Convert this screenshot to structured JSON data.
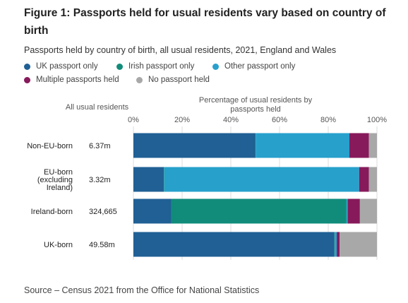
{
  "figure": {
    "title": "Figure 1: Passports held for usual residents vary based on country of birth",
    "subtitle": "Passports held by country of birth, all usual residents, 2021, England and Wales",
    "source": "Source – Census 2021 from the Office for National Statistics",
    "totals_header": "All usual residents",
    "percent_header": "Percentage of usual residents by passports held"
  },
  "colors": {
    "UK passport only": "#206095",
    "Irish passport only": "#118c7b",
    "Other passport only": "#27a0cc",
    "Multiple passports held": "#871a5b",
    "No passport held": "#a8a8a8"
  },
  "chart_data": {
    "type": "bar",
    "orientation": "horizontal",
    "stacked": true,
    "title": "Figure 1: Passports held for usual residents vary based on country of birth",
    "subtitle": "Passports held by country of birth, all usual residents, 2021, England and Wales",
    "xlabel": "Percentage of usual residents by passports held",
    "xlim": [
      0,
      100
    ],
    "xticks": [
      "0%",
      "20%",
      "40%",
      "60%",
      "80%",
      "100%"
    ],
    "legend_position": "top",
    "categories": [
      {
        "label": [
          "Non-EU-born"
        ],
        "total": "6.37m"
      },
      {
        "label": [
          "EU-born",
          "(excluding",
          "Ireland)"
        ],
        "total": "3.32m"
      },
      {
        "label": [
          "Ireland-born"
        ],
        "total": "324,665"
      },
      {
        "label": [
          "UK-born"
        ],
        "total": "49.58m"
      }
    ],
    "series": [
      {
        "name": "UK passport only",
        "values": [
          50,
          12.5,
          15.5,
          82.5
        ]
      },
      {
        "name": "Irish passport only",
        "values": [
          0.2,
          0.2,
          72,
          0.2
        ]
      },
      {
        "name": "Other passport only",
        "values": [
          38.5,
          80,
          0.5,
          0.8
        ]
      },
      {
        "name": "Multiple passports held",
        "values": [
          8,
          4,
          5,
          1.2
        ]
      },
      {
        "name": "No passport held",
        "values": [
          3.3,
          3.3,
          7,
          15.3
        ]
      }
    ]
  }
}
